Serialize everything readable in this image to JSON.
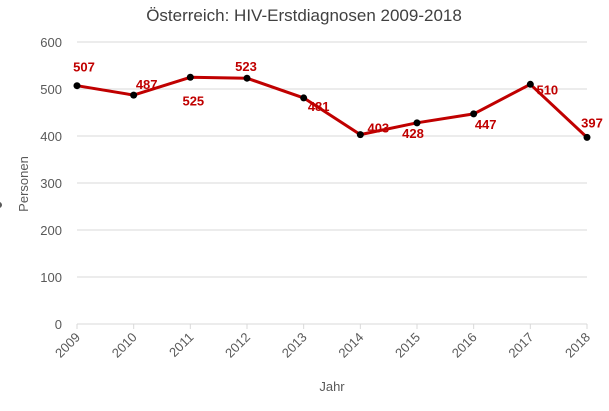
{
  "chart_data": {
    "type": "line",
    "title": "Österreich: HIV-Erstdiagnosen 2009-2018",
    "xlabel": "Jahr",
    "ylabel": "Personen",
    "categories": [
      "2009",
      "2010",
      "2011",
      "2012",
      "2013",
      "2014",
      "2015",
      "2016",
      "2017",
      "2018"
    ],
    "series": [
      {
        "values": [
          507,
          487,
          525,
          523,
          481,
          403,
          428,
          447,
          510,
          397
        ],
        "labels": [
          "507",
          "487",
          "525",
          "523",
          "481",
          "403",
          "428",
          "447",
          "510",
          "397"
        ]
      }
    ],
    "y_ticks": [
      "0",
      "100",
      "200",
      "300",
      "400",
      "500",
      "600"
    ],
    "ylim": [
      0,
      600
    ],
    "grid": true,
    "legend": "none",
    "colors": {
      "series": "#c00000",
      "markers": "#000000",
      "grid": "#d9d9d9",
      "text": "#595959"
    }
  }
}
